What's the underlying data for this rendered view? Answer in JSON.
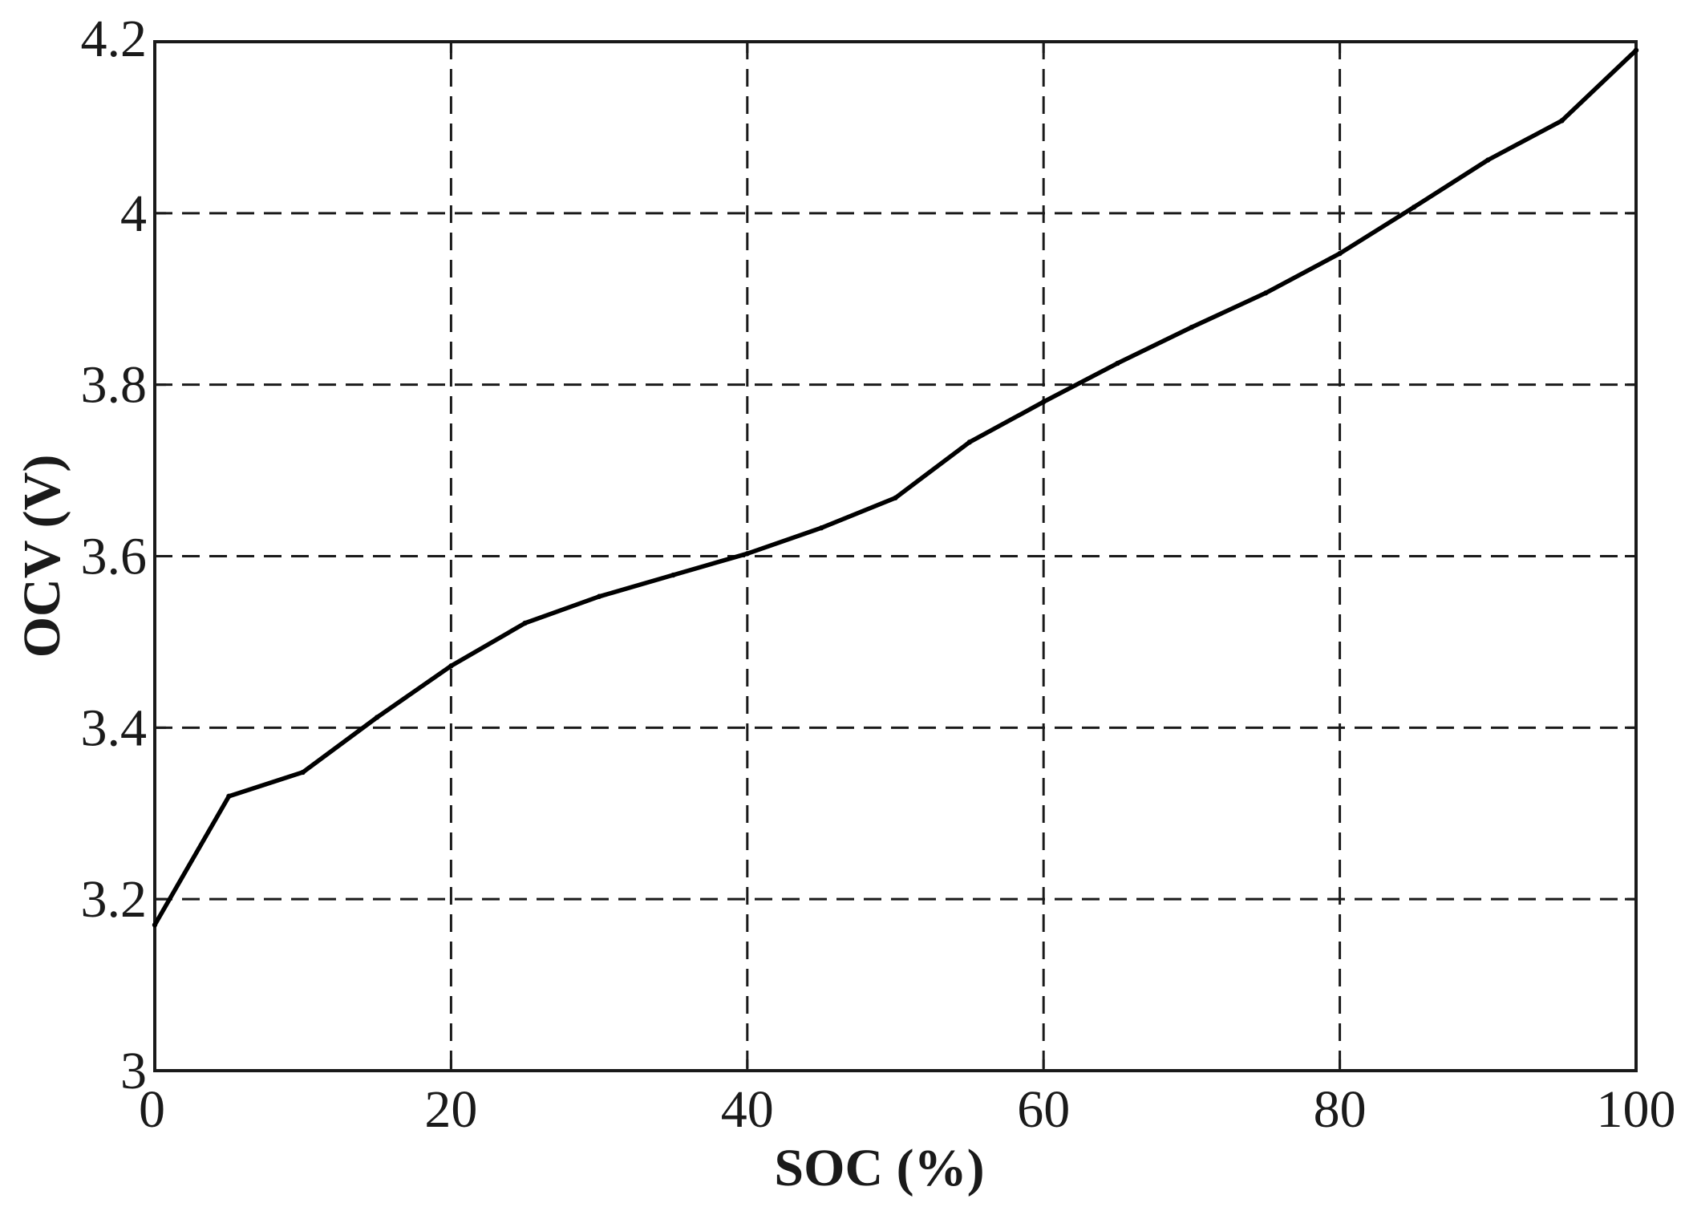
{
  "chart_data": {
    "type": "line",
    "xlabel": "SOC (%)",
    "ylabel": "OCV (V)",
    "xlim": [
      0,
      100
    ],
    "ylim": [
      3,
      4.2
    ],
    "x_ticks": [
      "0",
      "20",
      "40",
      "60",
      "80",
      "100"
    ],
    "y_ticks": [
      "3",
      "3.2",
      "3.4",
      "3.6",
      "3.8",
      "4",
      "4.2"
    ],
    "x_tick_values": [
      0,
      20,
      40,
      60,
      80,
      100
    ],
    "y_tick_values": [
      3,
      3.2,
      3.4,
      3.6,
      3.8,
      4,
      4.2
    ],
    "grid": true,
    "grid_style": "dashed",
    "line_color": "#000000",
    "series": [
      {
        "x": [
          0,
          5,
          10,
          15,
          20,
          25,
          30,
          35,
          40,
          45,
          50,
          55,
          60,
          65,
          70,
          75,
          80,
          85,
          90,
          95,
          100
        ],
        "values": [
          3.17,
          3.32,
          3.348,
          3.412,
          3.472,
          3.522,
          3.553,
          3.578,
          3.603,
          3.633,
          3.668,
          3.733,
          3.78,
          3.825,
          3.867,
          3.907,
          3.953,
          4.007,
          4.062,
          4.108,
          4.19
        ]
      }
    ]
  }
}
